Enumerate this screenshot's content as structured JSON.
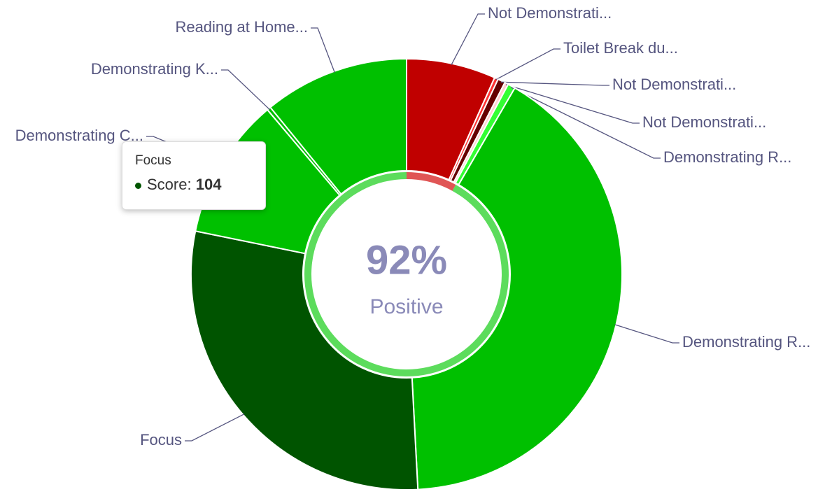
{
  "chart_data": {
    "type": "donut",
    "categories": [
      "Not Demonstrati...",
      "Toilet Break du...",
      "Not Demonstrati...",
      "Not Demonstrati...",
      "Demonstrating R...",
      "Demonstrating R...",
      "Focus",
      "Demonstrating C...",
      "Demonstrating K...",
      "Reading at Home..."
    ],
    "values": [
      24,
      1,
      2,
      1,
      2,
      146,
      104,
      38,
      1,
      39
    ],
    "colors": [
      "#c00000",
      "#ff3333",
      "#660000",
      "#ffd0d0",
      "#33ff33",
      "#00c000",
      "#005400",
      "#00c000",
      "#00c000",
      "#00c000"
    ],
    "center": {
      "value": 92,
      "label": "92%"
    },
    "center_caption": "Positive",
    "tooltip": {
      "label": "Score:"
    }
  }
}
